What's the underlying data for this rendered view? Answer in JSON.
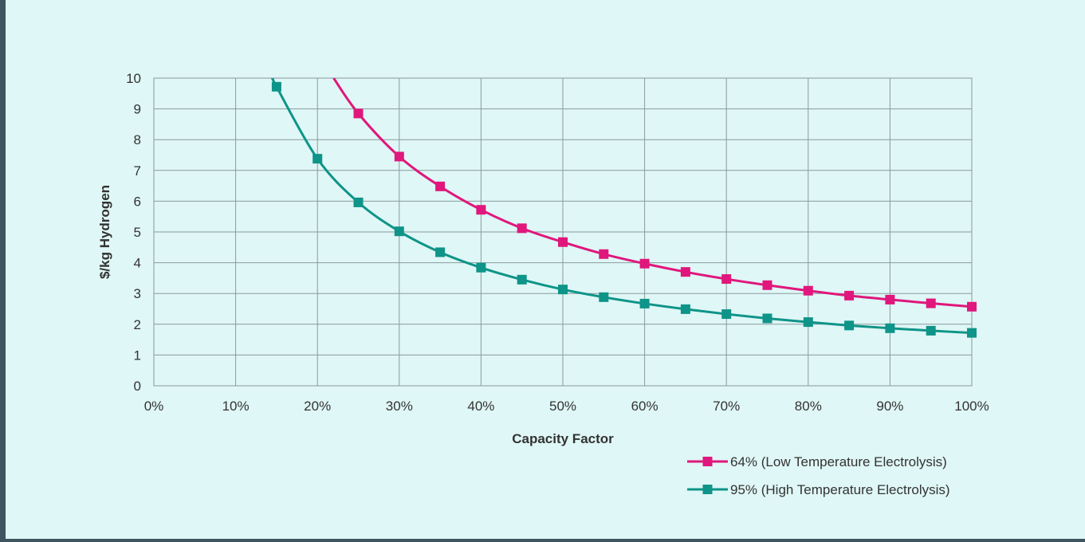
{
  "chart_data": {
    "type": "line",
    "title": "",
    "xlabel": "Capacity Factor",
    "ylabel": "$/kg Hydrogen",
    "xlim": [
      0,
      100
    ],
    "ylim": [
      0,
      10
    ],
    "x_ticks": [
      "0%",
      "10%",
      "20%",
      "30%",
      "40%",
      "50%",
      "60%",
      "70%",
      "80%",
      "90%",
      "100%"
    ],
    "y_ticks": [
      "0",
      "1",
      "2",
      "3",
      "4",
      "5",
      "6",
      "7",
      "8",
      "9",
      "10"
    ],
    "grid": true,
    "legend_position": "bottom-right",
    "series": [
      {
        "name": "64% (Low Temperature Electrolysis)",
        "color": "#e0177c",
        "x": [
          25,
          30,
          35,
          40,
          45,
          50,
          55,
          60,
          65,
          70,
          75,
          80,
          85,
          90,
          95,
          100
        ],
        "y": [
          8.85,
          7.45,
          6.48,
          5.72,
          5.12,
          4.67,
          4.28,
          3.97,
          3.7,
          3.47,
          3.27,
          3.09,
          2.93,
          2.8,
          2.68,
          2.57
        ]
      },
      {
        "name": "95% (High Temperature Electrolysis)",
        "color": "#0e9488",
        "x": [
          15,
          20,
          25,
          30,
          35,
          40,
          45,
          50,
          55,
          60,
          65,
          70,
          75,
          80,
          85,
          90,
          95,
          100
        ],
        "y": [
          9.72,
          7.38,
          5.96,
          5.02,
          4.34,
          3.84,
          3.45,
          3.13,
          2.88,
          2.67,
          2.49,
          2.33,
          2.19,
          2.07,
          1.96,
          1.87,
          1.79,
          1.72
        ]
      }
    ]
  }
}
